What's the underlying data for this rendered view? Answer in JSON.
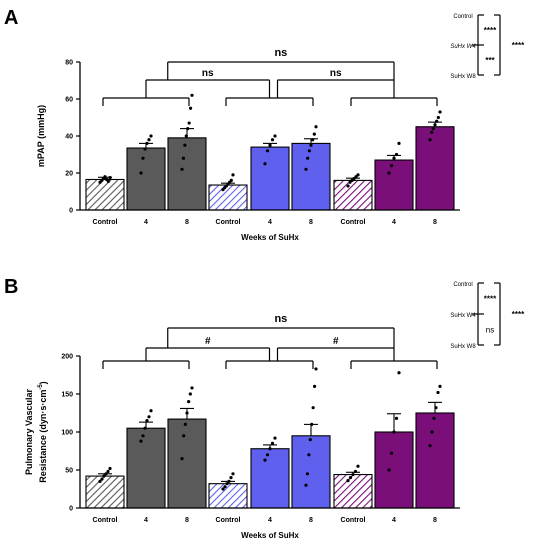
{
  "panels": [
    {
      "letter": "A",
      "chart_data": {
        "type": "bar",
        "ylabel": "mPAP (mmHg)",
        "xlabel": "Weeks of SuHx",
        "ylim": [
          0,
          80
        ],
        "yticks": [
          0,
          20,
          40,
          60,
          80
        ],
        "groups": [
          {
            "color": "#5a5a5a",
            "bars": [
              {
                "category": "Control",
                "value": 16.5,
                "sem": 1.2,
                "points": [
                  15,
                  16,
                  17,
                  18,
                  16.5,
                  15.5,
                  17.5
                ]
              },
              {
                "category": "4",
                "value": 33.5,
                "sem": 2.5,
                "points": [
                  20,
                  28,
                  33,
                  36,
                  38,
                  40
                ]
              },
              {
                "category": "8",
                "value": 39,
                "sem": 5,
                "points": [
                  22,
                  28,
                  35,
                  40,
                  44,
                  47,
                  55,
                  62
                ]
              }
            ]
          },
          {
            "color": "#6060ee",
            "bars": [
              {
                "category": "Control",
                "value": 13.5,
                "sem": 1,
                "points": [
                  11,
                  12,
                  13,
                  14,
                  15,
                  16,
                  19
                ]
              },
              {
                "category": "4",
                "value": 34,
                "sem": 2,
                "points": [
                  25,
                  32,
                  35,
                  38,
                  40
                ]
              },
              {
                "category": "8",
                "value": 36,
                "sem": 2.5,
                "points": [
                  22,
                  28,
                  32,
                  35,
                  38,
                  41,
                  45
                ]
              }
            ]
          },
          {
            "color": "#7a0f7a",
            "bars": [
              {
                "category": "Control",
                "value": 16,
                "sem": 1.2,
                "points": [
                  13,
                  15,
                  16,
                  17,
                  18,
                  19
                ]
              },
              {
                "category": "4",
                "value": 27,
                "sem": 2.5,
                "points": [
                  20,
                  24,
                  28,
                  30,
                  36
                ]
              },
              {
                "category": "8",
                "value": 45,
                "sem": 2.5,
                "points": [
                  38,
                  42,
                  44,
                  46,
                  48,
                  50,
                  53
                ]
              }
            ]
          }
        ],
        "significance": {
          "top": "ns",
          "left": "ns",
          "right": "ns"
        },
        "legend": {
          "labels": [
            "Control",
            "SuHx W4",
            "SuHx W8"
          ],
          "pair_1_2": "****",
          "pair_2_3": "***",
          "pair_1_3": "****"
        }
      }
    },
    {
      "letter": "B",
      "chart_data": {
        "type": "bar",
        "ylabel": "Pulmonary Vascular",
        "ylabel2_base": "Resistance (dyn·s·cm",
        "ylabel2_sup": "-5",
        "ylabel2_end": ")",
        "xlabel": "Weeks of SuHx",
        "ylim": [
          0,
          200
        ],
        "yticks": [
          0,
          50,
          100,
          150,
          200
        ],
        "groups": [
          {
            "color": "#5a5a5a",
            "bars": [
              {
                "category": "Control",
                "value": 42,
                "sem": 3,
                "points": [
                  35,
                  38,
                  42,
                  45,
                  48,
                  52
                ]
              },
              {
                "category": "4",
                "value": 105,
                "sem": 8,
                "points": [
                  88,
                  95,
                  105,
                  115,
                  120,
                  128
                ]
              },
              {
                "category": "8",
                "value": 117,
                "sem": 14,
                "points": [
                  65,
                  95,
                  110,
                  125,
                  140,
                  150,
                  158
                ]
              }
            ]
          },
          {
            "color": "#6060ee",
            "bars": [
              {
                "category": "Control",
                "value": 32,
                "sem": 3,
                "points": [
                  25,
                  28,
                  32,
                  35,
                  40,
                  45
                ]
              },
              {
                "category": "4",
                "value": 78,
                "sem": 5,
                "points": [
                  63,
                  70,
                  78,
                  85,
                  92
                ]
              },
              {
                "category": "8",
                "value": 95,
                "sem": 15,
                "points": [
                  30,
                  45,
                  70,
                  90,
                  110,
                  132,
                  160,
                  183
                ]
              }
            ]
          },
          {
            "color": "#7a0f7a",
            "bars": [
              {
                "category": "Control",
                "value": 44,
                "sem": 3,
                "points": [
                  36,
                  40,
                  44,
                  48,
                  55
                ]
              },
              {
                "category": "4",
                "value": 100,
                "sem": 24,
                "points": [
                  50,
                  72,
                  100,
                  118,
                  178
                ]
              },
              {
                "category": "8",
                "value": 125,
                "sem": 14,
                "points": [
                  82,
                  100,
                  118,
                  132,
                  152,
                  160
                ]
              }
            ]
          }
        ],
        "significance": {
          "top": "ns",
          "left": "#",
          "right": "#"
        },
        "legend": {
          "labels": [
            "Control",
            "SuHx W4",
            "SuHx W8"
          ],
          "pair_1_2": "****",
          "pair_2_3": "ns",
          "pair_1_3": "****"
        }
      }
    }
  ]
}
